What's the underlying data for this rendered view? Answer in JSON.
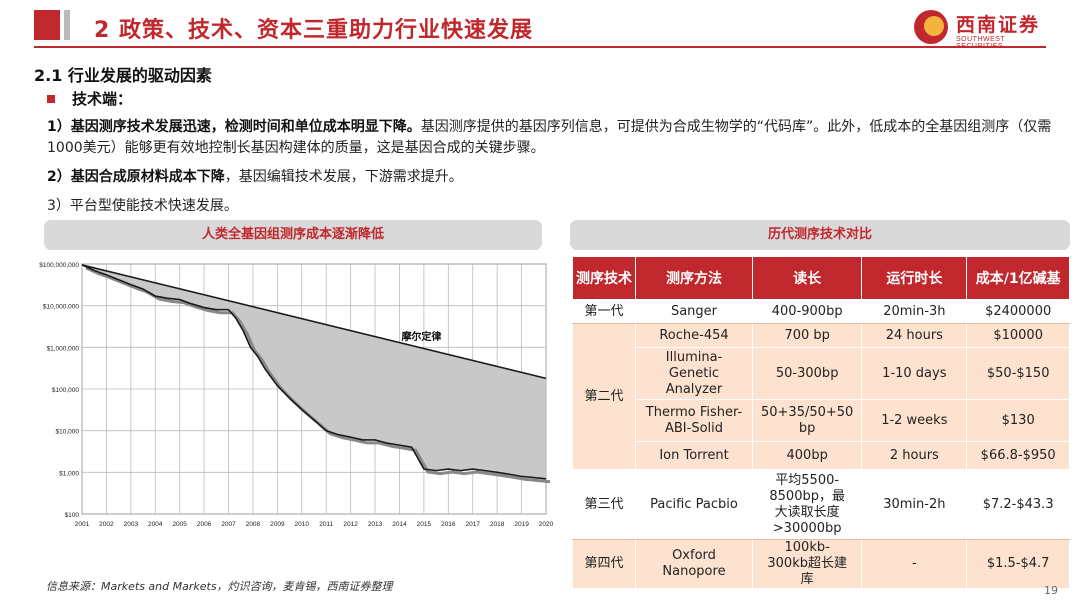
{
  "header": {
    "title": "2 政策、技术、资本三重助力行业快速发展",
    "logo_cn": "西南证券",
    "logo_en": "SOUTHWEST SECURITIES"
  },
  "section": {
    "title": "2.1 行业发展的驱动因素",
    "bullet": "技术端："
  },
  "paragraphs": {
    "p1_bold": "1）基因测序技术发展迅速，检测时间和单位成本明显下降。",
    "p1_rest": "基因测序提供的基因序列信息，可提供为合成生物学的“代码库”。此外，低成本的全基因组测序（仅需1000美元）能够更有效地控制长基因构建体的质量，这是基因合成的关键步骤。",
    "p2_bold": "2）基因合成原材料成本下降",
    "p2_rest": "，基因编辑技术发展，下游需求提升。",
    "p3": "3）平台型使能技术快速发展。"
  },
  "left_panel": {
    "title": "人类全基因组测序成本逐渐降低"
  },
  "right_panel": {
    "title": "历代测序技术对比"
  },
  "chart_data": {
    "type": "line",
    "title": "",
    "annotation": "摩尔定律",
    "y_scale": "log",
    "yticks": [
      "$100,000,000",
      "$10,000,000",
      "$1,000,000",
      "$100,000",
      "$10,000",
      "$1,000",
      "$100"
    ],
    "ytick_values": [
      100000000,
      10000000,
      1000000,
      100000,
      10000,
      1000,
      100
    ],
    "xticks": [
      "2001",
      "2002",
      "2003",
      "2004",
      "2005",
      "2006",
      "2007",
      "2008",
      "2009",
      "2010",
      "2011",
      "2012",
      "2013",
      "2014",
      "2015",
      "2016",
      "2017",
      "2018",
      "2019",
      "2020"
    ],
    "ylim": [
      100,
      100000000
    ],
    "xlim": [
      2001,
      2020
    ],
    "grid": true,
    "series": [
      {
        "name": "",
        "x": [
          2001.0,
          2001.5,
          2002.0,
          2002.5,
          2003.0,
          2003.5,
          2004.0,
          2004.5,
          2005.0,
          2005.5,
          2006.0,
          2006.5,
          2007.0,
          2007.3,
          2007.6,
          2007.9,
          2008.2,
          2008.5,
          2009.0,
          2009.5,
          2010.0,
          2010.5,
          2011.0,
          2011.5,
          2012.0,
          2012.5,
          2013.0,
          2013.5,
          2014.0,
          2014.5,
          2015.0,
          2015.5,
          2016.0,
          2016.5,
          2017.0,
          2017.5,
          2018.0,
          2018.5,
          2019.0,
          2019.5,
          2020.0
        ],
        "y": [
          95000000,
          70000000,
          55000000,
          42000000,
          32000000,
          25000000,
          17000000,
          15000000,
          14000000,
          11000000,
          9000000,
          8000000,
          8000000,
          5000000,
          2500000,
          1000000,
          600000,
          300000,
          120000,
          60000,
          32000,
          18000,
          10000,
          8000,
          7000,
          6000,
          6000,
          5000,
          4500,
          4000,
          1200,
          1100,
          1200,
          1100,
          1200,
          1100,
          1000,
          900,
          800,
          750,
          700
        ]
      },
      {
        "name": "摩尔定律",
        "x": [
          2001,
          2020
        ],
        "y": [
          95000000,
          180000
        ]
      }
    ]
  },
  "table": {
    "headers": [
      "测序技术",
      "测序方法",
      "读长",
      "运行时长",
      "成本/1亿碱基"
    ],
    "rows": [
      {
        "gen": "第一代",
        "method": "Sanger",
        "read": "400-900bp",
        "time": "20min-3h",
        "cost": "$2400000"
      },
      {
        "gen": "第二代",
        "method": "Roche-454",
        "read": "700 bp",
        "time": "24 hours",
        "cost": "$10000"
      },
      {
        "gen": "",
        "method": "Illumina-Genetic Analyzer",
        "read": "50-300bp",
        "time": "1-10 days",
        "cost": "$50-$150"
      },
      {
        "gen": "",
        "method": "Thermo Fisher-ABI-Solid",
        "read": "50+35/50+50 bp",
        "time": "1-2 weeks",
        "cost": "$130"
      },
      {
        "gen": "",
        "method": "Ion Torrent",
        "read": "400bp",
        "time": "2 hours",
        "cost": "$66.8-$950"
      },
      {
        "gen": "第三代",
        "method": "Pacific Pacbio",
        "read": "平均5500-8500bp，最大读取长度>30000bp",
        "time": "30min-2h",
        "cost": "$7.2-$43.3"
      },
      {
        "gen": "第四代",
        "method": "Oxford Nanopore",
        "read": "100kb-300kb超长建库",
        "time": "-",
        "cost": "$1.5-$4.7"
      }
    ]
  },
  "footer": {
    "source": "信息来源：Markets and Markets，灼识咨询，麦肯锡，西南证券整理",
    "page": "19"
  }
}
